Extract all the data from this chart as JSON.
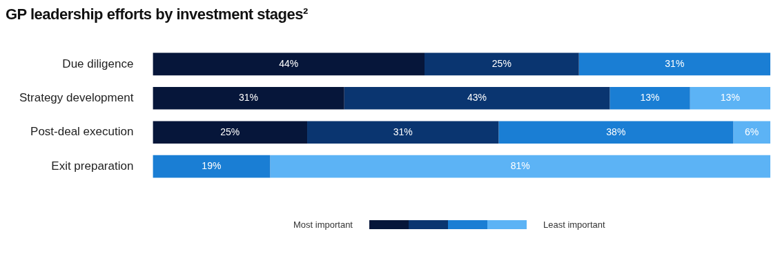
{
  "chart_data": {
    "type": "bar",
    "orientation": "horizontal",
    "stacked": true,
    "title": "GP leadership efforts by investment stages²",
    "categories": [
      "Due diligence",
      "Strategy development",
      "Post-deal execution",
      "Exit preparation"
    ],
    "series": [
      {
        "color": "#06163a",
        "values": [
          44,
          31,
          25,
          null
        ],
        "value_labels": [
          "44%",
          "31%",
          "25%",
          null
        ]
      },
      {
        "color": "#0a3570",
        "values": [
          25,
          43,
          31,
          null
        ],
        "value_labels": [
          "25%",
          "43%",
          "31%",
          null
        ]
      },
      {
        "color": "#1a7ed4",
        "values": [
          31,
          13,
          38,
          19
        ],
        "value_labels": [
          "31%",
          "13%",
          "38%",
          "19%"
        ]
      },
      {
        "color": "#5cb3f5",
        "values": [
          null,
          13,
          6,
          81
        ],
        "value_labels": [
          null,
          "13%",
          "6%",
          "81%"
        ]
      }
    ],
    "xlim": [
      0,
      100
    ],
    "tick_labels": "y",
    "annotations": [
      "Most important",
      "Least important"
    ]
  }
}
